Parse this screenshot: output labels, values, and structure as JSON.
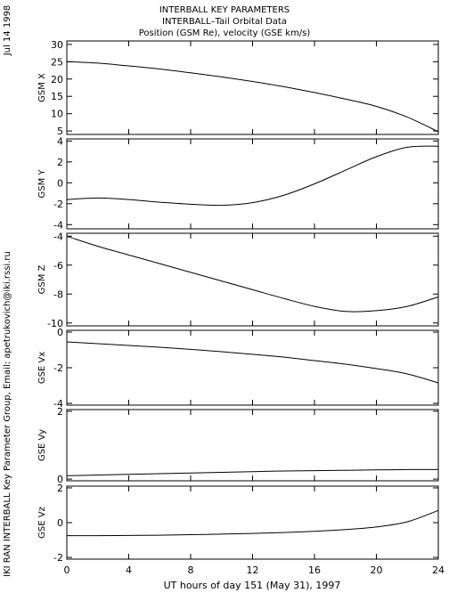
{
  "header": {
    "date_stamp": "Jul 14 1998",
    "line1": "INTERBALL KEY PARAMETERS",
    "line2": "INTERBALL–Tail Orbital Data",
    "line3": "Position (GSM Re), velocity (GSE km/s)"
  },
  "side_credit": "IKI RAN INTERBALL Key Parameter Group, Email: apetrukovich@iki.rssi.ru",
  "chart_data": [
    {
      "type": "line",
      "ylabel": "GSM X",
      "ylim": [
        4,
        31
      ],
      "yticks": [
        5,
        10,
        15,
        20,
        25,
        30
      ],
      "x": [
        0,
        2,
        4,
        6,
        8,
        10,
        12,
        14,
        16,
        18,
        20,
        22,
        24
      ],
      "values": [
        25.0,
        24.6,
        23.8,
        22.9,
        21.8,
        20.6,
        19.3,
        17.8,
        16.1,
        14.2,
        12.1,
        9.0,
        4.8
      ]
    },
    {
      "type": "line",
      "ylabel": "GSM Y",
      "ylim": [
        -4.4,
        4.2
      ],
      "yticks": [
        -4,
        -2,
        0,
        2,
        4
      ],
      "x": [
        0,
        2,
        4,
        6,
        8,
        10,
        12,
        14,
        16,
        18,
        20,
        22,
        24
      ],
      "values": [
        -1.6,
        -1.45,
        -1.6,
        -1.85,
        -2.05,
        -2.15,
        -1.9,
        -1.2,
        -0.1,
        1.2,
        2.5,
        3.4,
        3.5
      ]
    },
    {
      "type": "line",
      "ylabel": "GSM Z",
      "ylim": [
        -10.2,
        -3.8
      ],
      "yticks": [
        -10,
        -8,
        -6,
        -4
      ],
      "x": [
        0,
        2,
        4,
        6,
        8,
        10,
        12,
        14,
        16,
        18,
        20,
        22,
        24
      ],
      "values": [
        -4.0,
        -4.7,
        -5.3,
        -5.9,
        -6.5,
        -7.1,
        -7.7,
        -8.3,
        -8.85,
        -9.2,
        -9.15,
        -8.85,
        -8.2
      ]
    },
    {
      "type": "line",
      "ylabel": "GSE Vx",
      "ylim": [
        -4.1,
        0.1
      ],
      "yticks": [
        -4,
        -2,
        0
      ],
      "x": [
        0,
        2,
        4,
        6,
        8,
        10,
        12,
        14,
        16,
        18,
        20,
        22,
        24
      ],
      "values": [
        -0.55,
        -0.65,
        -0.75,
        -0.85,
        -0.97,
        -1.1,
        -1.25,
        -1.4,
        -1.6,
        -1.8,
        -2.05,
        -2.35,
        -2.85
      ]
    },
    {
      "type": "line",
      "ylabel": "GSE Vy",
      "ylim": [
        -0.05,
        2.05
      ],
      "yticks": [
        0,
        2
      ],
      "x": [
        0,
        2,
        4,
        6,
        8,
        10,
        12,
        14,
        16,
        18,
        20,
        22,
        24
      ],
      "values": [
        0.1,
        0.12,
        0.14,
        0.16,
        0.18,
        0.2,
        0.22,
        0.24,
        0.25,
        0.26,
        0.27,
        0.28,
        0.28
      ]
    },
    {
      "type": "line",
      "ylabel": "GSE Vz",
      "ylim": [
        -2.1,
        2.1
      ],
      "yticks": [
        -2,
        0,
        2
      ],
      "x": [
        0,
        2,
        4,
        6,
        8,
        10,
        12,
        14,
        16,
        18,
        20,
        22,
        24
      ],
      "values": [
        -0.75,
        -0.75,
        -0.74,
        -0.72,
        -0.69,
        -0.66,
        -0.62,
        -0.57,
        -0.5,
        -0.4,
        -0.25,
        0.05,
        0.7
      ]
    }
  ],
  "x_axis": {
    "xlim": [
      0,
      24
    ],
    "ticks": [
      0,
      4,
      8,
      12,
      16,
      20,
      24
    ],
    "label": "UT hours of day 151 (May 31), 1997"
  }
}
